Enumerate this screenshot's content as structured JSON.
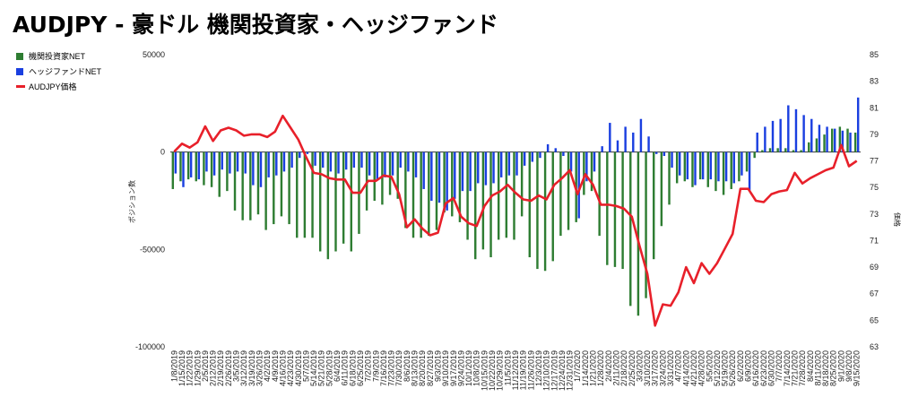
{
  "title": "AUDJPY - 豪ドル 機関投資家・ヘッジファンド",
  "legend": [
    {
      "label": "機関投資家NET",
      "color": "#2e7d32"
    },
    {
      "label": "ヘッジファンドNET",
      "color": "#1a3fe0"
    },
    {
      "label": "AUDJPY価格",
      "color": "#e8202a"
    }
  ],
  "chart_data": {
    "type": "bar",
    "title": "AUDJPY - 豪ドル 機関投資家・ヘッジファンド",
    "xlabel": "",
    "ylabel": "ポジション数",
    "y2label": "価格",
    "ylim": [
      -100000,
      50000
    ],
    "y2lim": [
      63,
      85
    ],
    "yticks": [
      50000,
      0,
      -50000,
      -100000
    ],
    "ytick_labels": [
      "50000",
      "0",
      "-50000",
      "-100000"
    ],
    "y2ticks": [
      85,
      83,
      81,
      79,
      77,
      75,
      73,
      71,
      69,
      67,
      65,
      63
    ],
    "grid": false,
    "legend_position": "top-left",
    "x_labels": [
      "1/8/2019",
      "1/15/2019",
      "1/22/2019",
      "1/29/2019",
      "2/5/2019",
      "2/12/2019",
      "2/19/2019",
      "2/26/2019",
      "3/5/2019",
      "3/12/2019",
      "3/19/2019",
      "3/26/2019",
      "4/2/2019",
      "4/9/2019",
      "4/16/2019",
      "4/23/2019",
      "4/30/2019",
      "5/7/2019",
      "5/14/2019",
      "5/21/2019",
      "5/28/2019",
      "6/4/2019",
      "6/11/2019",
      "6/18/2019",
      "6/25/2019",
      "7/2/2019",
      "7/9/2019",
      "7/16/2019",
      "7/23/2019",
      "7/30/2019",
      "8/6/2019",
      "8/13/2019",
      "8/20/2019",
      "8/27/2019",
      "9/3/2019",
      "9/10/2019",
      "9/17/2019",
      "9/24/2019",
      "10/1/2019",
      "10/8/2019",
      "10/15/2019",
      "10/22/2019",
      "10/29/2019",
      "11/5/2019",
      "11/12/2019",
      "11/19/2019",
      "11/26/2019",
      "12/3/2019",
      "12/10/2019",
      "12/17/2019",
      "12/24/2019",
      "12/31/2019",
      "1/7/2020",
      "1/14/2020",
      "1/21/2020",
      "1/28/2020",
      "2/4/2020",
      "2/11/2020",
      "2/18/2020",
      "2/25/2020",
      "3/3/2020",
      "3/10/2020",
      "3/17/2020",
      "3/24/2020",
      "3/31/2020",
      "4/7/2020",
      "4/14/2020",
      "4/21/2020",
      "4/28/2020",
      "5/5/2020",
      "5/12/2020",
      "5/19/2020",
      "5/26/2020",
      "6/2/2020",
      "6/9/2020",
      "6/16/2020",
      "6/23/2020",
      "6/30/2020",
      "7/7/2020",
      "7/14/2020",
      "7/21/2020",
      "7/28/2020",
      "8/4/2020",
      "8/11/2020",
      "8/18/2020",
      "8/25/2020",
      "9/1/2020",
      "9/8/2020",
      "9/15/2020"
    ],
    "series": [
      {
        "name": "機関投資家NET",
        "axis": "left",
        "kind": "bar",
        "color": "#2e7d32",
        "values": [
          -19000,
          -15000,
          -14000,
          -15000,
          -17000,
          -18000,
          -23000,
          -20000,
          -30000,
          -35000,
          -35000,
          -32000,
          -40000,
          -37000,
          -33000,
          -37000,
          -44000,
          -44000,
          -44000,
          -51000,
          -55000,
          -51000,
          -47000,
          -51000,
          -42000,
          -30000,
          -25000,
          -27000,
          -22000,
          -24000,
          -39000,
          -44000,
          -44000,
          -43000,
          -40000,
          -31000,
          -33000,
          -36000,
          -45000,
          -55000,
          -50000,
          -54000,
          -45000,
          -44000,
          -45000,
          -33000,
          -54000,
          -60000,
          -61000,
          -56000,
          -43000,
          -40000,
          -36000,
          -22000,
          -20000,
          -43000,
          -58000,
          -59000,
          -60000,
          -79000,
          -84000,
          -75000,
          -55000,
          -38000,
          -27000,
          -16000,
          -15000,
          -18000,
          -14000,
          -18000,
          -20000,
          -22000,
          -19000,
          -15000,
          -10000,
          -3000,
          1000,
          2000,
          2000,
          2000,
          1000,
          1000,
          5000,
          7000,
          9000,
          12000,
          13000,
          12000,
          10000
        ]
      },
      {
        "name": "ヘッジファンドNET",
        "axis": "left",
        "kind": "bar",
        "color": "#1a3fe0",
        "values": [
          -11000,
          -18000,
          -13000,
          -14000,
          -10000,
          -12000,
          -9000,
          -11000,
          -10000,
          -11000,
          -17000,
          -18000,
          -13000,
          -12000,
          -10000,
          -8000,
          -3000,
          -1000,
          -7000,
          -8000,
          -10000,
          -11000,
          -9000,
          -8000,
          -8000,
          -12000,
          -14000,
          -13000,
          -12000,
          -8000,
          -10000,
          -13000,
          -19000,
          -25000,
          -26000,
          -30000,
          -24000,
          -20000,
          -20000,
          -16000,
          -17000,
          -16000,
          -13000,
          -12000,
          -12000,
          -7000,
          -5000,
          -3000,
          4000,
          2000,
          -2000,
          -10000,
          -34000,
          -15000,
          -10000,
          3000,
          15000,
          6000,
          13000,
          10000,
          17000,
          8000,
          -1000,
          -2000,
          -8000,
          -12000,
          -14000,
          -17000,
          -14000,
          -14000,
          -15000,
          -15000,
          -16000,
          -12000,
          -20000,
          10000,
          13000,
          16000,
          17000,
          24000,
          22000,
          19000,
          17000,
          14000,
          13000,
          12000,
          11000,
          10000,
          28000
        ]
      },
      {
        "name": "AUDJPY価格",
        "axis": "right",
        "kind": "line",
        "color": "#e8202a",
        "values": [
          77.7,
          78.3,
          78.0,
          78.4,
          79.6,
          78.5,
          79.3,
          79.5,
          79.3,
          78.9,
          79.0,
          79.0,
          78.8,
          79.2,
          80.4,
          79.5,
          78.6,
          77.3,
          76.1,
          76.0,
          75.7,
          75.6,
          75.6,
          74.6,
          74.6,
          75.5,
          75.5,
          75.9,
          75.8,
          74.5,
          72.0,
          72.6,
          71.9,
          71.4,
          71.6,
          73.8,
          74.2,
          72.8,
          72.3,
          72.1,
          73.6,
          74.4,
          74.7,
          75.2,
          74.6,
          74.1,
          74.0,
          74.4,
          74.1,
          75.2,
          75.7,
          76.3,
          74.5,
          76.0,
          75.2,
          73.7,
          73.7,
          73.6,
          73.4,
          72.8,
          70.6,
          68.5,
          64.6,
          66.2,
          66.1,
          67.1,
          69.0,
          67.8,
          69.3,
          68.5,
          69.3,
          70.4,
          71.5,
          74.9,
          74.9,
          74.0,
          73.9,
          74.5,
          74.7,
          74.8,
          76.1,
          75.3,
          75.7,
          76.0,
          76.3,
          76.5,
          78.2,
          76.6,
          77.0
        ]
      }
    ]
  }
}
